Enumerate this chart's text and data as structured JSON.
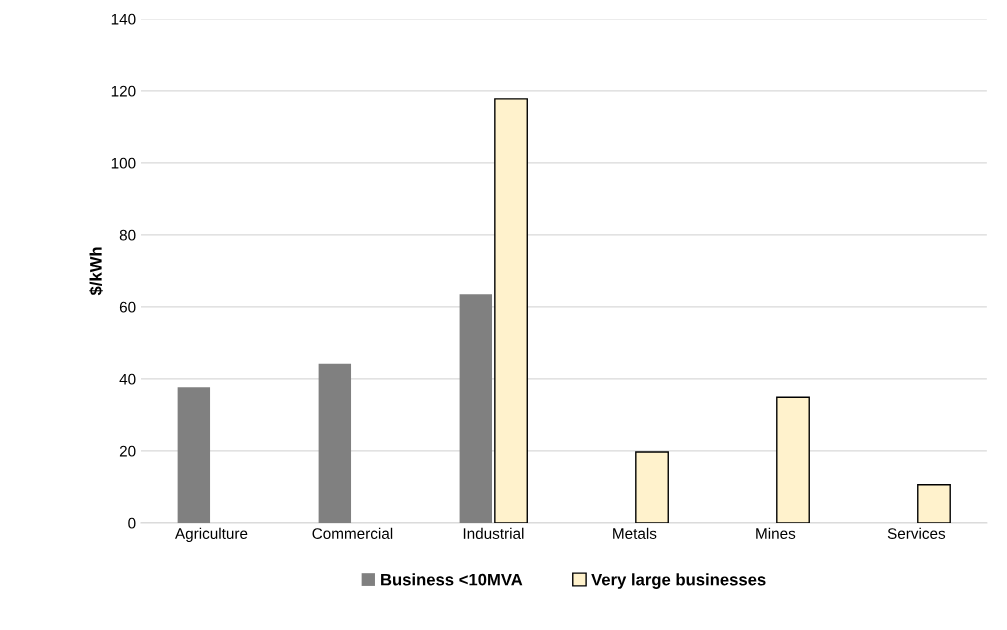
{
  "chart_data": {
    "type": "bar",
    "ylabel": "$/kWh",
    "categories": [
      "Agriculture",
      "Commercial",
      "Industrial",
      "Metals",
      "Mines",
      "Services"
    ],
    "series": [
      {
        "name": "Business <10MVA",
        "color": "#808080",
        "values": [
          37.7,
          44.2,
          63.5,
          null,
          null,
          null
        ]
      },
      {
        "name": "Very large businesses",
        "color": "#fff2cc",
        "values": [
          null,
          null,
          117.8,
          19.7,
          34.9,
          10.6
        ]
      }
    ],
    "ylim": [
      0,
      140
    ],
    "yticks": [
      0,
      20,
      40,
      60,
      80,
      100,
      120,
      140
    ],
    "grid": "y",
    "legend": "bottom"
  }
}
